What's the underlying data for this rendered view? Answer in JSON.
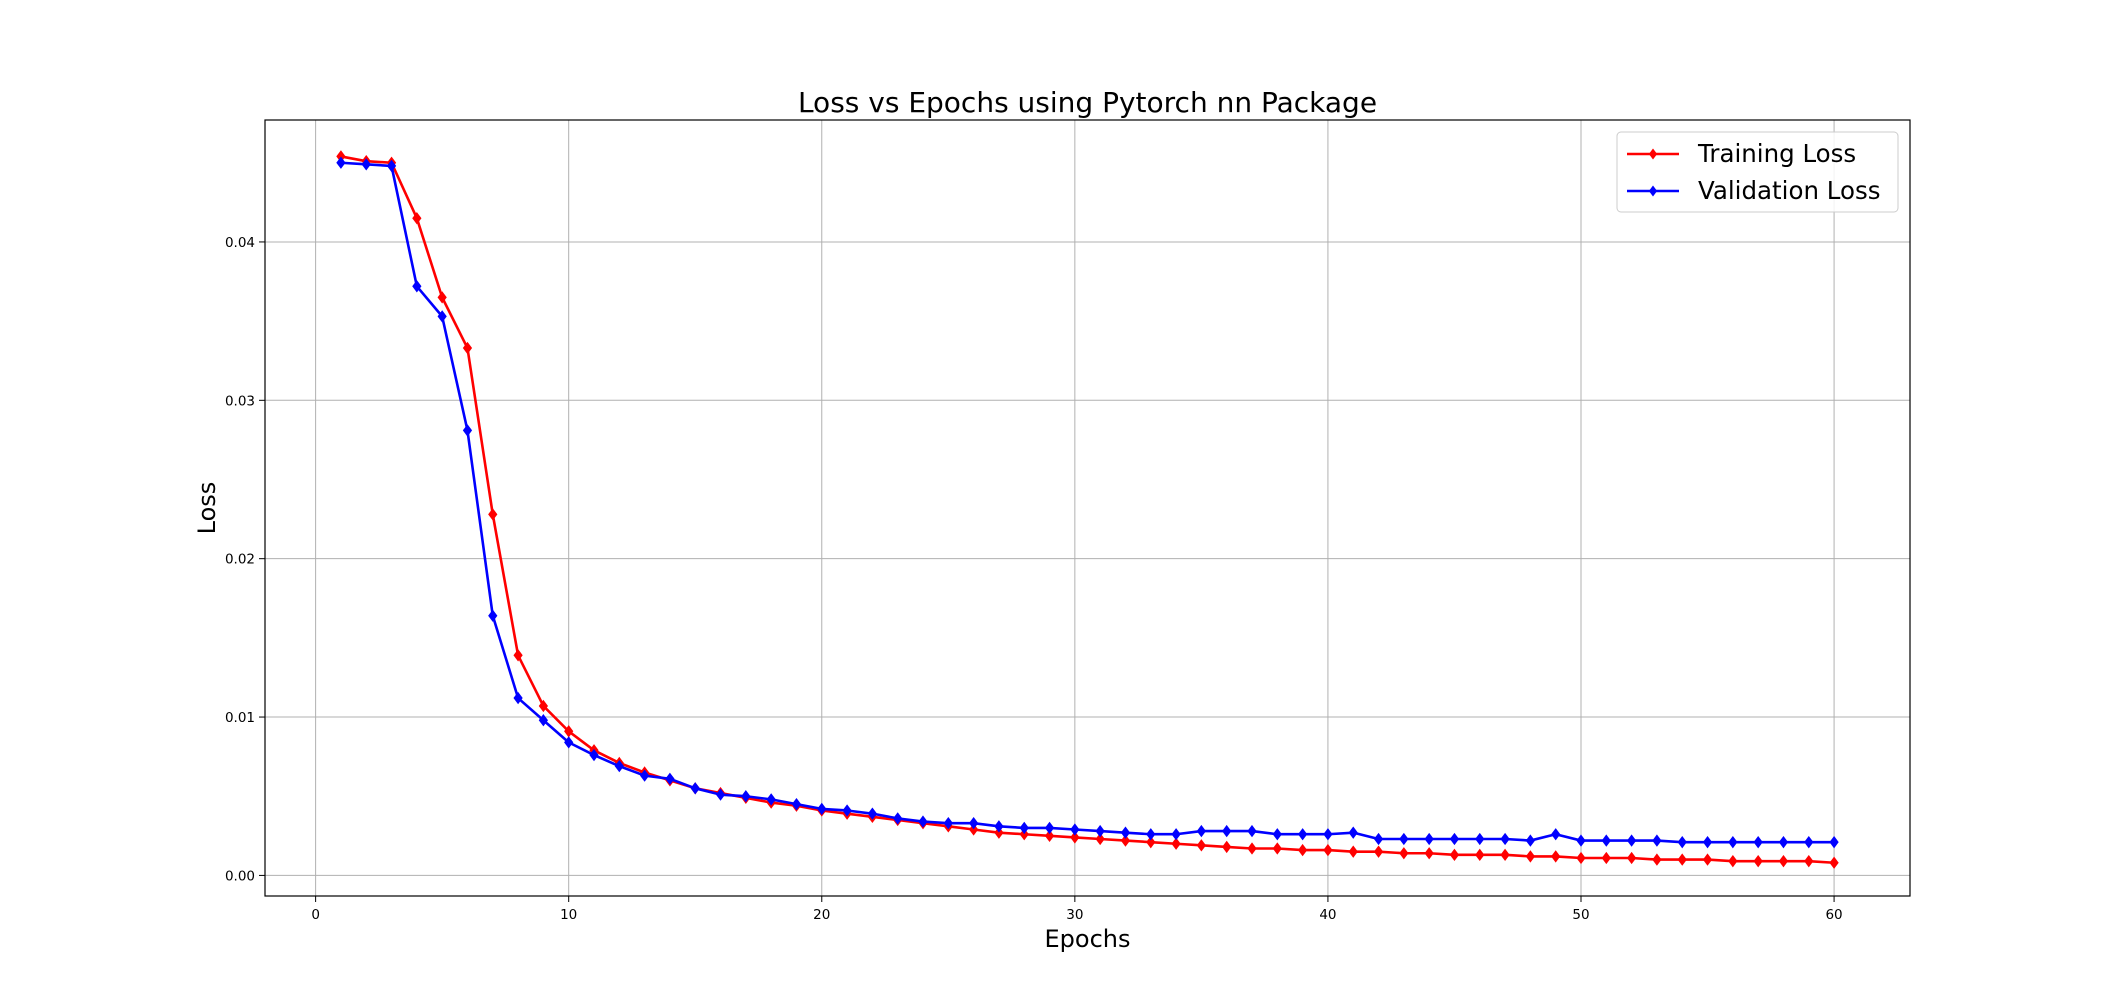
{
  "chart_data": {
    "type": "line",
    "title": "Loss vs Epochs using Pytorch nn Package",
    "xlabel": "Epochs",
    "ylabel": "Loss",
    "xlim": [
      -2,
      63
    ],
    "ylim": [
      -0.0013,
      0.0477
    ],
    "xticks": [
      0,
      10,
      20,
      30,
      40,
      50,
      60
    ],
    "yticks": [
      0.0,
      0.01,
      0.02,
      0.03,
      0.04
    ],
    "xtick_labels": [
      "0",
      "10",
      "20",
      "30",
      "40",
      "50",
      "60"
    ],
    "ytick_labels": [
      "0.00",
      "0.01",
      "0.02",
      "0.03",
      "0.04"
    ],
    "grid": true,
    "legend_position": "top-right",
    "x": [
      1,
      2,
      3,
      4,
      5,
      6,
      7,
      8,
      9,
      10,
      11,
      12,
      13,
      14,
      15,
      16,
      17,
      18,
      19,
      20,
      21,
      22,
      23,
      24,
      25,
      26,
      27,
      28,
      29,
      30,
      31,
      32,
      33,
      34,
      35,
      36,
      37,
      38,
      39,
      40,
      41,
      42,
      43,
      44,
      45,
      46,
      47,
      48,
      49,
      50,
      51,
      52,
      53,
      54,
      55,
      56,
      57,
      58,
      59,
      60
    ],
    "series": [
      {
        "name": "Training Loss",
        "color": "#ff0000",
        "marker": "diamond",
        "values": [
          0.0454,
          0.0451,
          0.045,
          0.0415,
          0.0365,
          0.0333,
          0.0228,
          0.0139,
          0.0107,
          0.0091,
          0.0079,
          0.0071,
          0.0065,
          0.006,
          0.0055,
          0.0052,
          0.0049,
          0.0046,
          0.0044,
          0.0041,
          0.0039,
          0.0037,
          0.0035,
          0.0033,
          0.0031,
          0.0029,
          0.0027,
          0.0026,
          0.0025,
          0.0024,
          0.0023,
          0.0022,
          0.0021,
          0.002,
          0.0019,
          0.0018,
          0.0017,
          0.0017,
          0.0016,
          0.0016,
          0.0015,
          0.0015,
          0.0014,
          0.0014,
          0.0013,
          0.0013,
          0.0013,
          0.0012,
          0.0012,
          0.0011,
          0.0011,
          0.0011,
          0.001,
          0.001,
          0.001,
          0.0009,
          0.0009,
          0.0009,
          0.0009,
          0.0008
        ]
      },
      {
        "name": "Validation Loss",
        "color": "#0000ff",
        "marker": "diamond",
        "values": [
          0.045,
          0.0449,
          0.0448,
          0.0372,
          0.0353,
          0.0281,
          0.0164,
          0.0112,
          0.0098,
          0.0084,
          0.0076,
          0.0069,
          0.0063,
          0.0061,
          0.0055,
          0.0051,
          0.005,
          0.0048,
          0.0045,
          0.0042,
          0.0041,
          0.0039,
          0.0036,
          0.0034,
          0.0033,
          0.0033,
          0.0031,
          0.003,
          0.003,
          0.0029,
          0.0028,
          0.0027,
          0.0026,
          0.0026,
          0.0028,
          0.0028,
          0.0028,
          0.0026,
          0.0026,
          0.0026,
          0.0027,
          0.0023,
          0.0023,
          0.0023,
          0.0023,
          0.0023,
          0.0023,
          0.0022,
          0.0026,
          0.0022,
          0.0022,
          0.0022,
          0.0022,
          0.0021,
          0.0021,
          0.0021,
          0.0021,
          0.0021,
          0.0021,
          0.0021
        ]
      }
    ]
  }
}
